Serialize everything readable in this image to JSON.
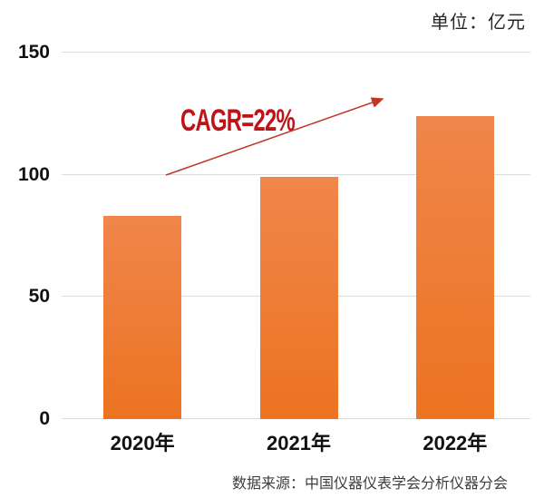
{
  "header": {
    "unit_label": "单位：亿元"
  },
  "footer": {
    "source": "数据来源：中国仪器仪表学会分析仪器分会"
  },
  "chart_data": {
    "type": "bar",
    "title": "",
    "categories": [
      "2020年",
      "2021年",
      "2022年"
    ],
    "values": [
      83,
      99,
      124
    ],
    "unit": "亿元",
    "xlabel": "",
    "ylabel": "",
    "ylim": [
      0,
      150
    ],
    "yticks": [
      0,
      50,
      100,
      150
    ],
    "grid": "horizontal-only",
    "legend": "none",
    "bar_gradient": [
      "#F0864B",
      "#EC7321"
    ],
    "annotation": {
      "text": "CAGR=22%",
      "color": "#BE1418",
      "arrow_color": "#C2342C"
    }
  }
}
